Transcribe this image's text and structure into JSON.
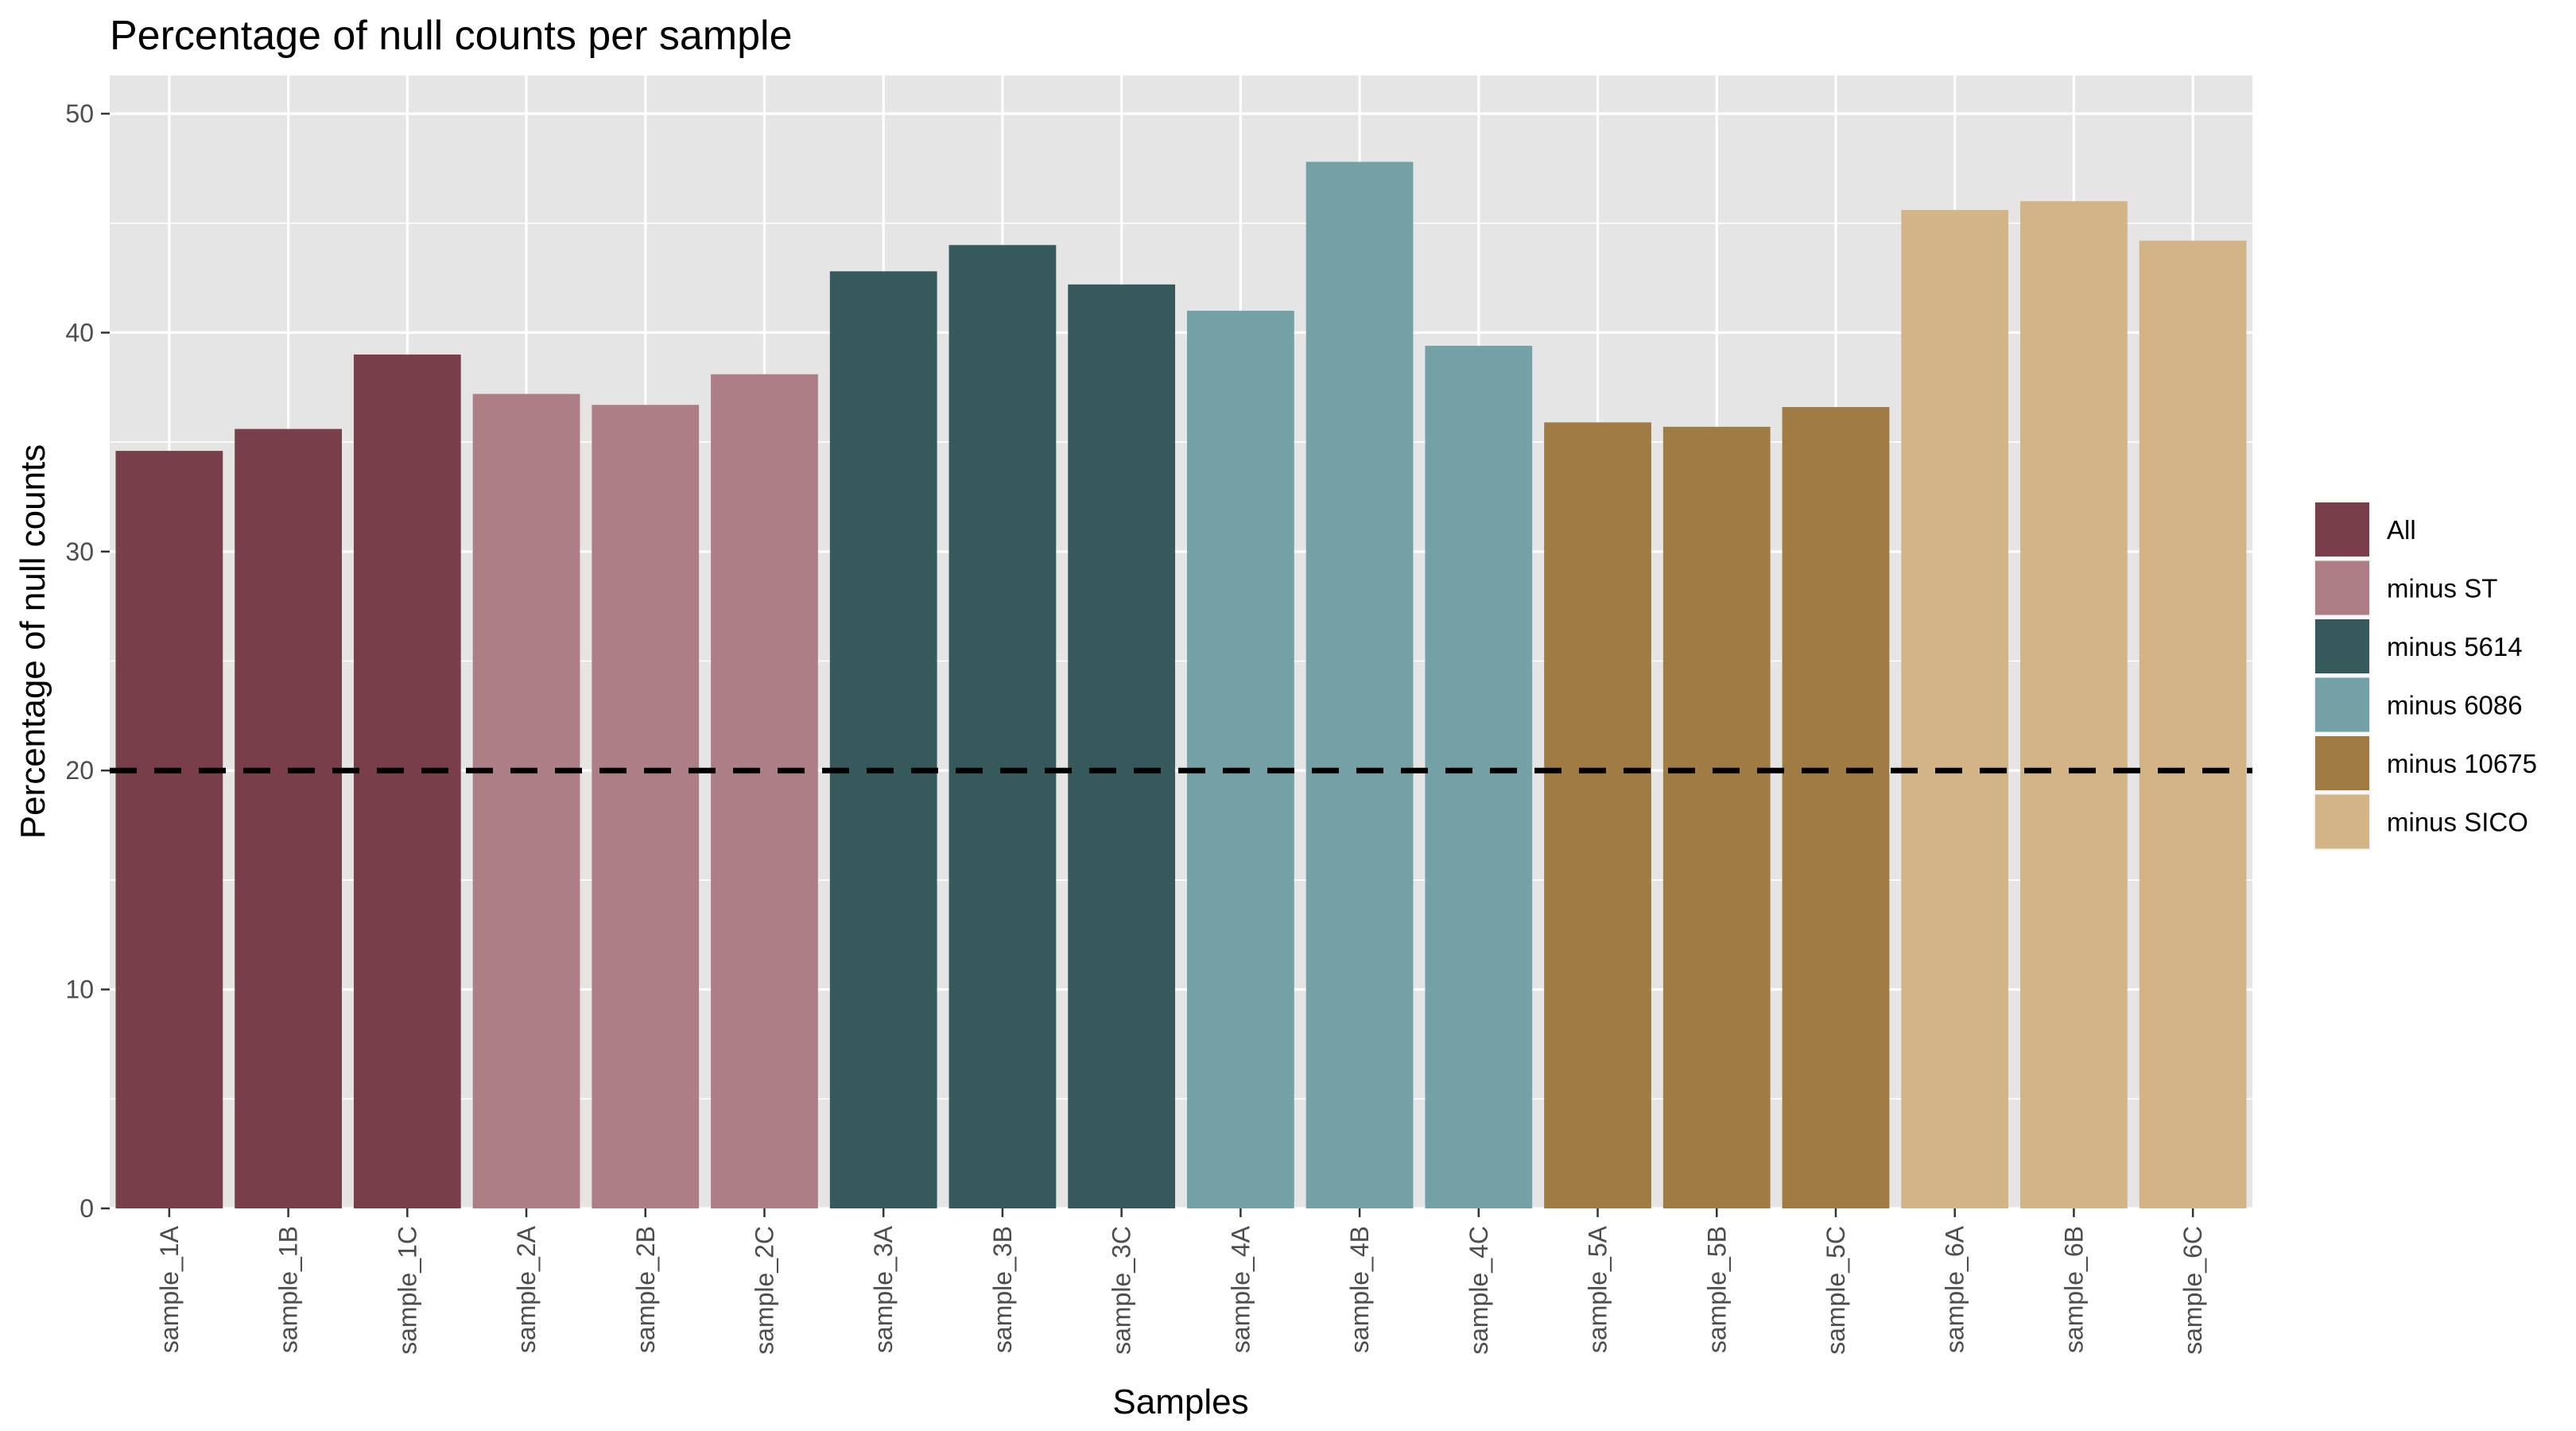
{
  "chart_data": {
    "type": "bar",
    "title": "Percentage of null counts per sample",
    "xlabel": "Samples",
    "ylabel": "Percentage of null counts",
    "ylim": [
      0,
      50
    ],
    "yticks": [
      0,
      10,
      20,
      30,
      40,
      50
    ],
    "grid": true,
    "legend_position": "right",
    "reference_line": {
      "y": 20,
      "style": "dashed",
      "color": "#000000"
    },
    "categories": [
      "sample_1A",
      "sample_1B",
      "sample_1C",
      "sample_2A",
      "sample_2B",
      "sample_2C",
      "sample_3A",
      "sample_3B",
      "sample_3C",
      "sample_4A",
      "sample_4B",
      "sample_4C",
      "sample_5A",
      "sample_5B",
      "sample_5C",
      "sample_6A",
      "sample_6B",
      "sample_6C"
    ],
    "values": [
      34.6,
      35.6,
      39.0,
      37.2,
      36.7,
      38.1,
      42.8,
      44.0,
      42.2,
      41.0,
      47.8,
      39.4,
      35.9,
      35.7,
      36.6,
      45.6,
      46.0,
      44.2
    ],
    "groups": [
      "All",
      "All",
      "All",
      "minus ST",
      "minus ST",
      "minus ST",
      "minus 5614",
      "minus 5614",
      "minus 5614",
      "minus 6086",
      "minus 6086",
      "minus 6086",
      "minus 10675",
      "minus 10675",
      "minus 10675",
      "minus SICO",
      "minus SICO",
      "minus SICO"
    ],
    "legend": [
      {
        "name": "All",
        "color": "#783f4a"
      },
      {
        "name": "minus ST",
        "color": "#ae7e87"
      },
      {
        "name": "minus 5614",
        "color": "#36595c"
      },
      {
        "name": "minus 6086",
        "color": "#73a1a5"
      },
      {
        "name": "minus 10675",
        "color": "#a07b43"
      },
      {
        "name": "minus SICO",
        "color": "#d2b486"
      }
    ],
    "colors": {
      "panel_background": "#e5e5e5",
      "grid": "#ffffff",
      "tick_text": "#4d4d4d",
      "tick_mark": "#333333"
    }
  }
}
